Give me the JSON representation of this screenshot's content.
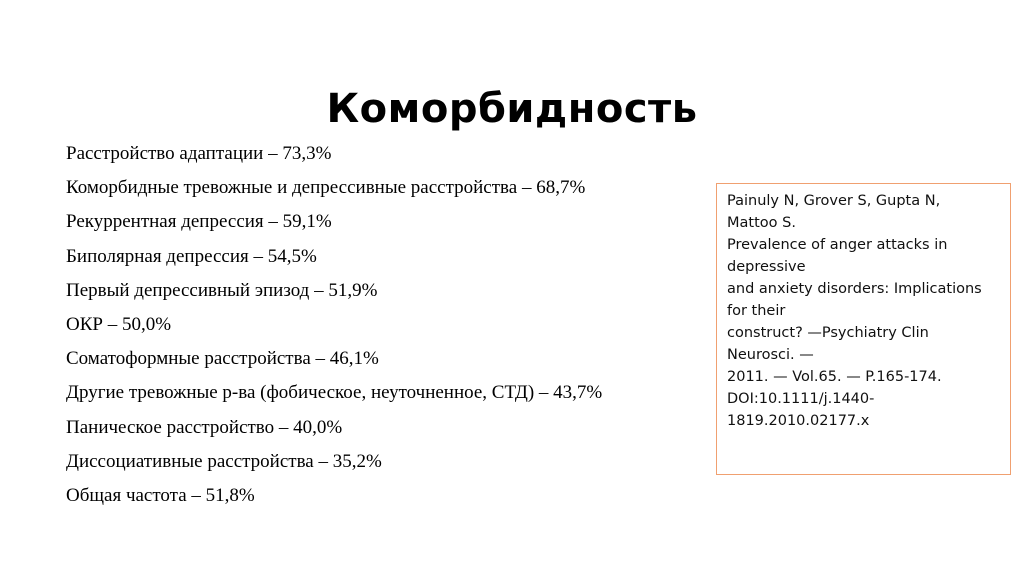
{
  "slide": {
    "title": "Коморбидность",
    "items": [
      "Расстройство адаптации – 73,3%",
      "Коморбидные тревожные и депрессивные расстройства – 68,7%",
      "Рекуррентная депрессия – 59,1%",
      "Биполярная депрессия – 54,5%",
      "Первый депрессивный эпизод – 51,9%",
      "ОКР – 50,0%",
      "Соматоформные расстройства – 46,1%",
      "Другие тревожные р-ва (фобическое, неуточненное, СТД) – 43,7%",
      "Паническое расстройство – 40,0%",
      "Диссоциативные расстройства – 35,2%",
      "Общая частота – 51,8%"
    ],
    "reference": {
      "lines": [
        "Painuly N, Grover S, Gupta N,",
        "Mattoo S.",
        "Prevalence of anger attacks in",
        "depressive",
        "and anxiety disorders: Implications",
        "for their",
        "construct? —Psychiatry Clin",
        "Neurosci. —",
        "2011. — Vol.65. — P.165-174.",
        "DOI:10.1111/j.1440-",
        "1819.2010.02177.x"
      ],
      "border_color": "#f0a070"
    }
  }
}
